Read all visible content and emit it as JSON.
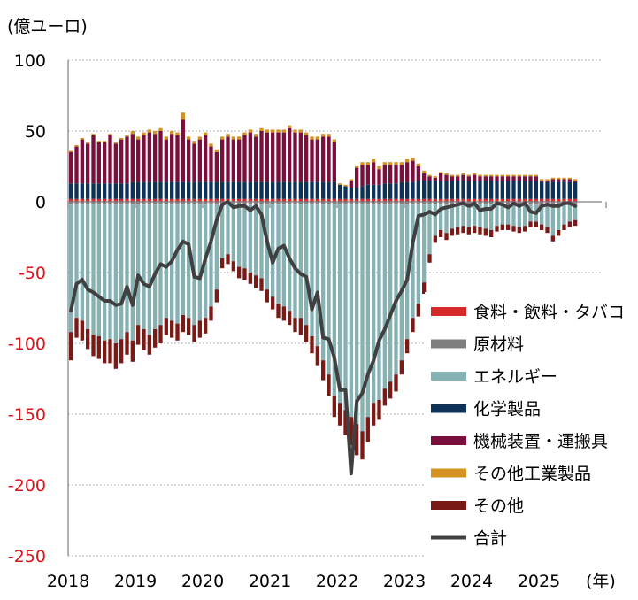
{
  "chart_data": {
    "type": "bar",
    "unit_label": "(億ユーロ)",
    "x_unit_label": "(年)",
    "ylim": [
      -250,
      100
    ],
    "yticks": [
      100,
      50,
      0,
      -50,
      -100,
      -150,
      -200,
      -250
    ],
    "xtick_labels": [
      "2018",
      "2019",
      "2020",
      "2021",
      "2022",
      "2023",
      "2024",
      "2025"
    ],
    "grid": true,
    "legend_position": "right",
    "start": "2018-01",
    "colors": {
      "food": "#d7282c",
      "raw": "#7f7f7f",
      "energy": "#86b2b4",
      "chemical": "#0d3157",
      "machinery": "#7a0f3d",
      "manufactured": "#d4921f",
      "other": "#7a1a16",
      "total": "#404040"
    },
    "legend": [
      {
        "key": "food",
        "label": "食料・飲料・タバコ"
      },
      {
        "key": "raw",
        "label": "原材料"
      },
      {
        "key": "energy",
        "label": "エネルギー"
      },
      {
        "key": "chemical",
        "label": "化学製品"
      },
      {
        "key": "machinery",
        "label": "機械装置・運搬具"
      },
      {
        "key": "manufactured",
        "label": "その他工業製品"
      },
      {
        "key": "other",
        "label": "その他"
      },
      {
        "key": "total",
        "label": "合計"
      }
    ],
    "series": {
      "food": [
        2,
        2,
        2,
        2,
        2,
        2,
        2,
        2,
        2,
        2,
        2,
        2,
        2,
        2,
        2,
        2,
        2,
        2,
        2,
        2,
        2,
        2,
        2,
        2,
        2,
        2,
        2,
        2,
        2,
        2,
        2,
        2,
        2,
        2,
        2,
        2,
        2,
        2,
        2,
        2,
        2,
        2,
        2,
        2,
        2,
        2,
        2,
        2,
        2,
        2,
        2,
        2,
        2,
        2,
        2,
        2,
        2,
        2,
        2,
        2,
        2,
        2,
        2,
        2,
        2,
        2,
        2,
        2,
        2,
        2,
        2,
        2,
        2,
        2,
        2,
        2,
        2,
        2,
        2,
        2,
        2,
        2,
        2,
        2,
        2,
        2,
        2,
        2,
        2,
        2,
        2
      ],
      "raw": [
        -2,
        -2,
        -2,
        -2,
        -2,
        -2,
        -2,
        -2,
        -2,
        -2,
        -2,
        -2,
        -2,
        -2,
        -2,
        -2,
        -2,
        -2,
        -2,
        -2,
        -2,
        -2,
        -2,
        -2,
        -2,
        -2,
        -2,
        -2,
        -2,
        -2,
        -2,
        -2,
        -2,
        -2,
        -2,
        -2,
        -2,
        -2,
        -2,
        -2,
        -2,
        -2,
        -2,
        -2,
        -2,
        -2,
        -2,
        -2,
        -2,
        -2,
        -2,
        -2,
        -2,
        -2,
        -2,
        -2,
        -2,
        -2,
        -2,
        -2,
        -2,
        -2,
        -2,
        -2,
        -2,
        -2,
        -2,
        -2,
        -2,
        -2,
        -2,
        -2,
        -2,
        -2,
        -2,
        -2,
        -2,
        -2,
        -2,
        -2,
        -2,
        -2,
        -2,
        -2,
        -2,
        -2,
        -2,
        -2,
        -2,
        -2,
        -2
      ],
      "energy": [
        -90,
        -80,
        -82,
        -88,
        -92,
        -93,
        -96,
        -95,
        -98,
        -95,
        -90,
        -96,
        -85,
        -88,
        -92,
        -88,
        -85,
        -80,
        -82,
        -84,
        -78,
        -80,
        -85,
        -82,
        -80,
        -72,
        -60,
        -38,
        -35,
        -40,
        -44,
        -45,
        -48,
        -50,
        -52,
        -60,
        -65,
        -70,
        -72,
        -75,
        -80,
        -80,
        -85,
        -93,
        -100,
        -110,
        -120,
        -135,
        -140,
        -145,
        -150,
        -155,
        -160,
        -150,
        -140,
        -138,
        -130,
        -125,
        -120,
        -110,
        -95,
        -80,
        -70,
        -55,
        -35,
        -22,
        -18,
        -20,
        -17,
        -16,
        -15,
        -16,
        -15,
        -16,
        -17,
        -18,
        -15,
        -14,
        -14,
        -15,
        -16,
        -15,
        -12,
        -12,
        -14,
        -16,
        -22,
        -18,
        -14,
        -12,
        -11
      ],
      "chemical": [
        11,
        11,
        11,
        11,
        11,
        11,
        11,
        11,
        11,
        11,
        11,
        12,
        12,
        12,
        12,
        12,
        12,
        12,
        12,
        12,
        12,
        12,
        12,
        12,
        12,
        12,
        12,
        12,
        12,
        12,
        12,
        12,
        12,
        12,
        12,
        12,
        12,
        12,
        12,
        12,
        12,
        12,
        12,
        12,
        12,
        12,
        12,
        12,
        10,
        9,
        8,
        8,
        9,
        10,
        10,
        10,
        11,
        11,
        11,
        12,
        12,
        12,
        13,
        13,
        13,
        13,
        13,
        13,
        13,
        13,
        13,
        13,
        13,
        13,
        13,
        13,
        13,
        13,
        13,
        13,
        13,
        13,
        13,
        13,
        12,
        12,
        12,
        12,
        12,
        12,
        12
      ],
      "machinery": [
        22,
        26,
        31,
        28,
        34,
        29,
        29,
        34,
        28,
        31,
        33,
        34,
        30,
        33,
        35,
        34,
        36,
        30,
        34,
        33,
        44,
        30,
        27,
        30,
        33,
        25,
        21,
        30,
        32,
        30,
        30,
        33,
        35,
        32,
        36,
        35,
        35,
        35,
        35,
        38,
        35,
        35,
        33,
        30,
        30,
        32,
        32,
        28,
        0,
        0,
        5,
        14,
        15,
        14,
        16,
        11,
        13,
        13,
        13,
        12,
        14,
        15,
        10,
        5,
        3,
        2,
        5,
        4,
        3,
        3,
        4,
        3,
        4,
        3,
        3,
        3,
        3,
        3,
        3,
        3,
        3,
        3,
        3,
        3,
        1,
        1,
        2,
        2,
        2,
        2,
        1
      ],
      "manufactured": [
        1,
        1,
        1,
        1,
        1,
        1,
        1,
        1,
        1,
        1,
        1,
        2,
        2,
        2,
        2,
        2,
        2,
        2,
        2,
        2,
        5,
        2,
        2,
        2,
        2,
        2,
        2,
        2,
        2,
        2,
        2,
        2,
        2,
        2,
        2,
        2,
        2,
        2,
        2,
        2,
        2,
        2,
        2,
        2,
        2,
        2,
        2,
        2,
        1,
        1,
        1,
        1,
        2,
        2,
        2,
        2,
        2,
        2,
        2,
        2,
        2,
        2,
        2,
        2,
        1,
        1,
        1,
        1,
        1,
        1,
        1,
        1,
        1,
        1,
        1,
        1,
        1,
        1,
        1,
        1,
        1,
        1,
        1,
        1,
        1,
        1,
        1,
        1,
        1,
        1,
        1
      ],
      "other": [
        -20,
        -14,
        -14,
        -14,
        -15,
        -16,
        -16,
        -17,
        -18,
        -17,
        -16,
        -15,
        -14,
        -15,
        -14,
        -13,
        -13,
        -12,
        -12,
        -12,
        -12,
        -12,
        -12,
        -12,
        -11,
        -10,
        -9,
        -7,
        -7,
        -7,
        -8,
        -8,
        -8,
        -9,
        -9,
        -9,
        -9,
        -10,
        -10,
        -10,
        -10,
        -12,
        -12,
        -12,
        -14,
        -14,
        -15,
        -15,
        -16,
        -18,
        -20,
        -22,
        -20,
        -18,
        -16,
        -14,
        -12,
        -12,
        -12,
        -10,
        -10,
        -10,
        -9,
        -8,
        -6,
        -5,
        -5,
        -5,
        -5,
        -5,
        -5,
        -5,
        -5,
        -5,
        -5,
        -5,
        -4,
        -4,
        -4,
        -4,
        -4,
        -4,
        -4,
        -4,
        -4,
        -4,
        -4,
        -4,
        -4,
        -4,
        -4
      ],
      "total": [
        -77,
        -58,
        -55,
        -62,
        -64,
        -67,
        -70,
        -70,
        -73,
        -72,
        -60,
        -73,
        -52,
        -58,
        -60,
        -51,
        -44,
        -46,
        -42,
        -34,
        -28,
        -30,
        -53,
        -54,
        -40,
        -28,
        -13,
        -2,
        0,
        -4,
        -3,
        -3,
        -6,
        -3,
        -9,
        -28,
        -43,
        -33,
        -31,
        -40,
        -47,
        -51,
        -53,
        -76,
        -64,
        -96,
        -97,
        -110,
        -133,
        -133,
        -192,
        -141,
        -135,
        -122,
        -112,
        -98,
        -90,
        -80,
        -70,
        -63,
        -55,
        -29,
        -10,
        -9,
        -7,
        -9,
        -5,
        -4,
        -3,
        -2,
        -1,
        -3,
        -1,
        -6,
        -5,
        -5,
        -1,
        -2,
        -4,
        -1,
        -3,
        -1,
        -7,
        -8,
        -3,
        -2,
        -3,
        -3,
        -1,
        -1,
        -3
      ]
    }
  }
}
